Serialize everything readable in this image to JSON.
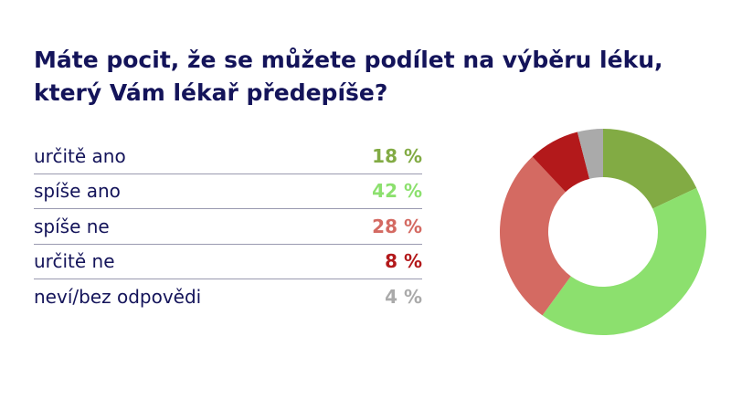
{
  "title": {
    "line1": "Máte pocit, že se můžete podílet na výběru léku,",
    "line2": "který Vám lékař předepíše?"
  },
  "rows": [
    {
      "label": "určitě ano",
      "value": "18 %",
      "color": "#82ab44"
    },
    {
      "label": "spíše ano",
      "value": "42 %",
      "color": "#8ce06e"
    },
    {
      "label": "spíše ne",
      "value": "28 %",
      "color": "#d46a62"
    },
    {
      "label": "určitě ne",
      "value": "8 %",
      "color": "#b3191b"
    },
    {
      "label": "neví/bez odpovědi",
      "value": "4 %",
      "color": "#aaaaaa"
    }
  ],
  "chart_data": {
    "type": "pie",
    "variant": "donut",
    "title": "Máte pocit, že se můžete podílet na výběru léku, který Vám lékař předepíše?",
    "categories": [
      "určitě ano",
      "spíše ano",
      "spíše ne",
      "určitě ne",
      "neví/bez odpovědi"
    ],
    "values": [
      18,
      42,
      28,
      8,
      4
    ],
    "unit": "%",
    "colors": [
      "#82ab44",
      "#8ce06e",
      "#d46a62",
      "#b3191b",
      "#aaaaaa"
    ],
    "start_angle": "12 o'clock, clockwise",
    "legend": "left table"
  }
}
